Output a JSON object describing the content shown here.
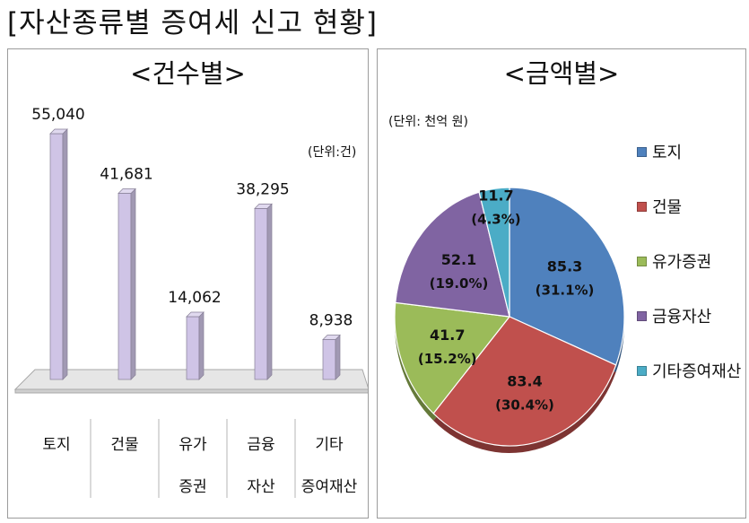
{
  "page_title": "[자산종류별 증여세 신고 현황]",
  "chart_data": [
    {
      "type": "bar",
      "title": "<건수별>",
      "unit_label": "(단위:건)",
      "categories": [
        [
          "토지"
        ],
        [
          "건물"
        ],
        [
          "유가",
          "증권"
        ],
        [
          "금융",
          "자산"
        ],
        [
          "기타",
          "증여재산"
        ]
      ],
      "series": [
        {
          "values": [
            55040,
            41681,
            14062,
            38295,
            8938
          ],
          "value_labels": [
            "55,040",
            "41,681",
            "14,062",
            "38,295",
            "8,938"
          ],
          "color": "#cfc4e6"
        }
      ],
      "ylim": [
        0,
        55040
      ],
      "grid": false,
      "legend": "none"
    },
    {
      "type": "pie",
      "title": "<금액별>",
      "unit_label": "(단위: 천억 원)",
      "slices": [
        {
          "label": "토지",
          "value": 85.3,
          "value_label": "85.3",
          "pct_label": "(31.1%)",
          "color": "#4f81bd",
          "text_color": "#111111"
        },
        {
          "label": "건물",
          "value": 83.4,
          "value_label": "83.4",
          "pct_label": "(30.4%)",
          "color": "#c0504d",
          "text_color": "#111111"
        },
        {
          "label": "유가증권",
          "value": 41.7,
          "value_label": "41.7",
          "pct_label": "(15.2%)",
          "color": "#9bbb59",
          "text_color": "#111111"
        },
        {
          "label": "금융자산",
          "value": 52.1,
          "value_label": "52.1",
          "pct_label": "(19.0%)",
          "color": "#8064a2",
          "text_color": "#111111"
        },
        {
          "label": "기타증여재산",
          "value": 11.7,
          "value_label": "11.7",
          "pct_label": "(4.3%)",
          "color": "#4bacc6",
          "text_color": "#111111"
        }
      ],
      "legend": "right"
    }
  ]
}
